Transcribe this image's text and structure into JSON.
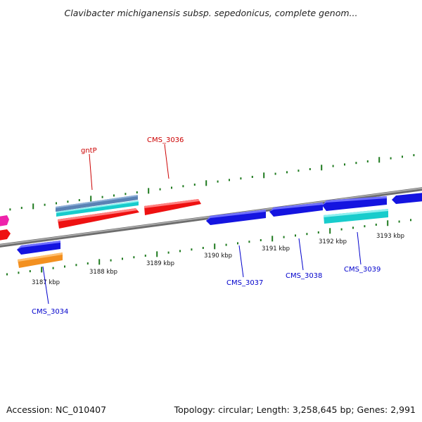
{
  "title": "Clavibacter michiganensis subsp. sepedonicus, complete genom...",
  "footer": {
    "accession": "Accession: NC_010407",
    "summary": "Topology: circular; Length: 3,258,645 bp; Genes: 2,991"
  },
  "colors": {
    "background": "#ffffff",
    "backbone": "#8a8a8a",
    "tick": "#1e7a1e",
    "forward_label": "#cc0000",
    "reverse_label": "#0000cc",
    "gene_red": "#ee1111",
    "gene_blue": "#1414e0",
    "gene_cyan": "#18cccc",
    "gene_steel": "#5a82b4",
    "gene_orange": "#f39020",
    "gene_magenta": "#ee22aa"
  },
  "scale_labels": [
    "3187 kbp",
    "3188 kbp",
    "3189 kbp",
    "3190 kbp",
    "3191 kbp",
    "3192 kbp",
    "3193 kbp"
  ],
  "gene_labels": {
    "gntP": "gntP",
    "CMS_3036": "CMS_3036",
    "CMS_3034": "CMS_3034",
    "CMS_3037": "CMS_3037",
    "CMS_3038": "CMS_3038",
    "CMS_3039": "CMS_3039"
  }
}
